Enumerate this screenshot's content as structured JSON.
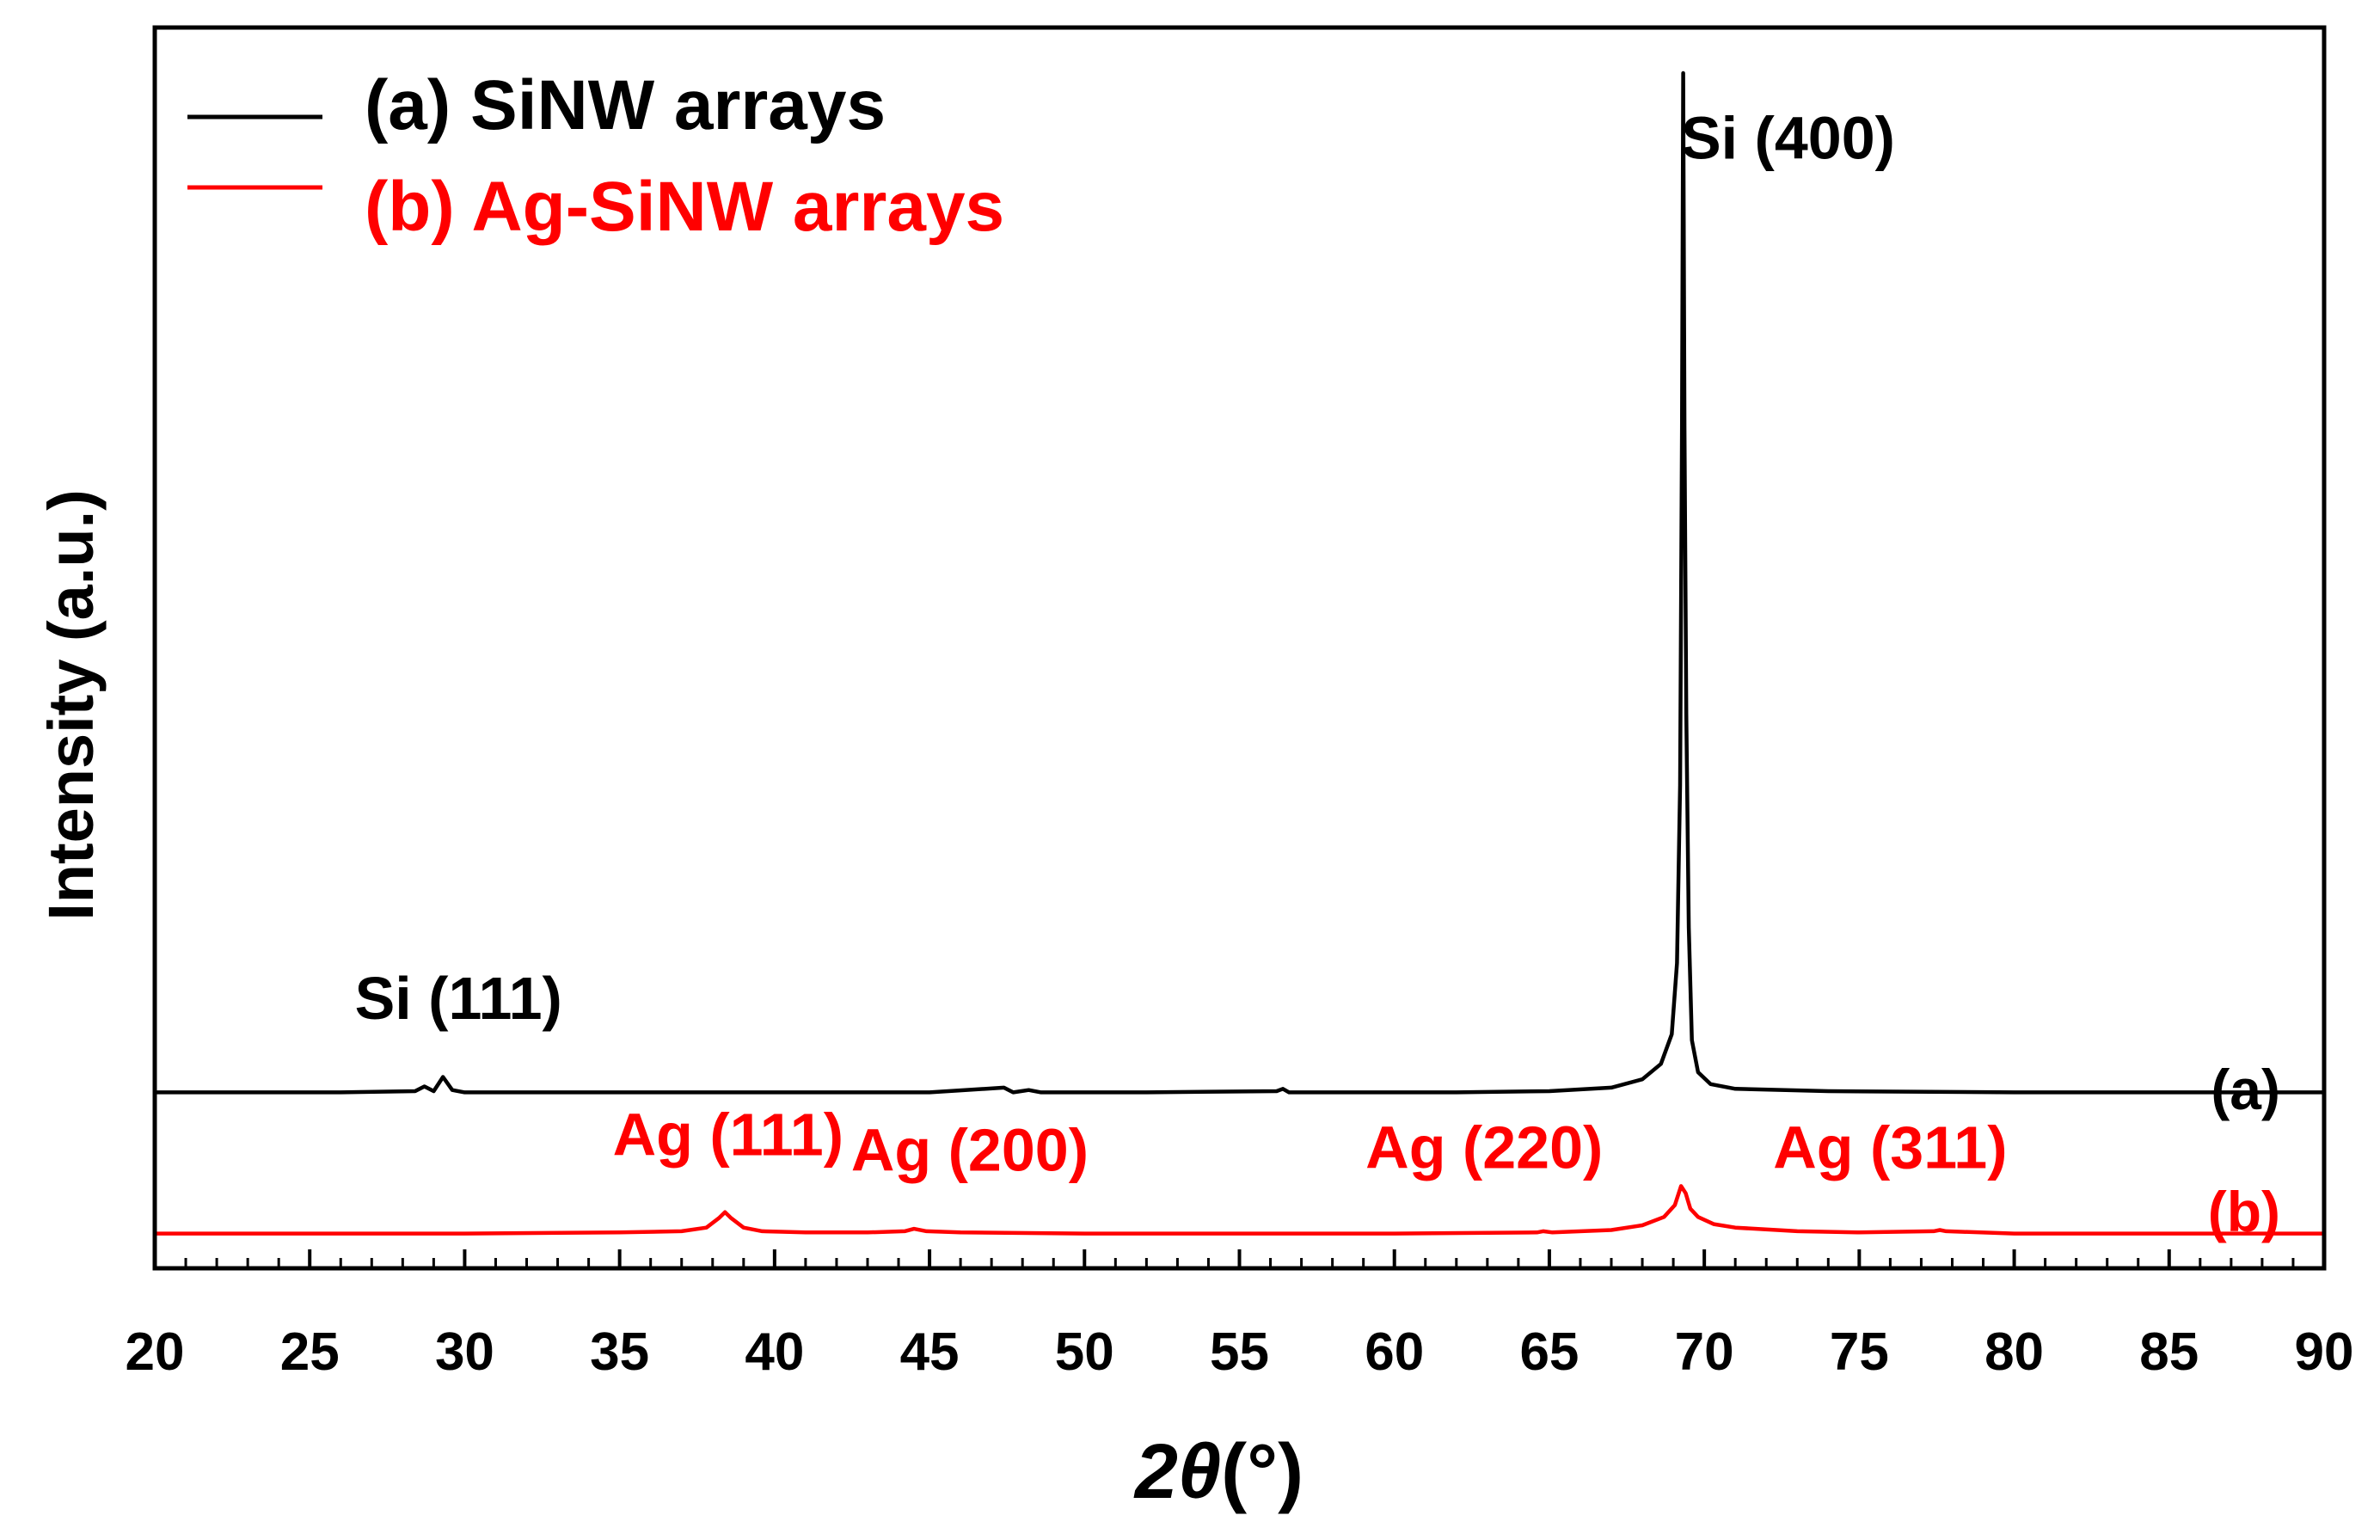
{
  "chart_data": {
    "type": "line",
    "xlabel_main": "2θ",
    "xlabel_unit": "(°)",
    "ylabel": "Intensity (a.u.)",
    "xlim": [
      20,
      90
    ],
    "ylim": [
      0,
      1000
    ],
    "x_major_ticks": [
      20,
      25,
      30,
      35,
      40,
      45,
      50,
      55,
      60,
      65,
      70,
      75,
      80,
      85,
      90
    ],
    "x_tick_labels": [
      "20",
      "25",
      "30",
      "35",
      "40",
      "45",
      "50",
      "55",
      "60",
      "65",
      "70",
      "75",
      "80",
      "85",
      "90"
    ],
    "grid": false,
    "legend_placement": "top-left",
    "series": [
      {
        "name": "(a) SiNW arrays",
        "tag": "(a)",
        "color": "#000000",
        "baseline": 141,
        "points": [
          [
            20,
            141
          ],
          [
            23,
            141
          ],
          [
            26,
            141
          ],
          [
            28.4,
            142
          ],
          [
            28.7,
            146
          ],
          [
            29.0,
            142
          ],
          [
            29.3,
            154
          ],
          [
            29.6,
            143
          ],
          [
            30,
            141
          ],
          [
            35,
            141
          ],
          [
            40,
            141
          ],
          [
            45,
            141
          ],
          [
            47.4,
            145
          ],
          [
            47.7,
            141
          ],
          [
            48.2,
            143
          ],
          [
            48.6,
            141
          ],
          [
            52,
            141
          ],
          [
            56.2,
            142
          ],
          [
            56.4,
            144
          ],
          [
            56.6,
            141
          ],
          [
            62,
            141
          ],
          [
            65,
            142
          ],
          [
            67,
            145
          ],
          [
            68.0,
            152
          ],
          [
            68.6,
            165
          ],
          [
            68.95,
            190
          ],
          [
            69.12,
            250
          ],
          [
            69.22,
            400
          ],
          [
            69.28,
            700
          ],
          [
            69.32,
            1000
          ],
          [
            69.36,
            700
          ],
          [
            69.42,
            460
          ],
          [
            69.5,
            280
          ],
          [
            69.6,
            185
          ],
          [
            69.8,
            158
          ],
          [
            70.2,
            148
          ],
          [
            71,
            144
          ],
          [
            74,
            142
          ],
          [
            80,
            141
          ],
          [
            90,
            141
          ]
        ]
      },
      {
        "name": "(b) Ag-SiNW arrays",
        "tag": "(b)",
        "color": "#ff0000",
        "baseline": 22,
        "points": [
          [
            20,
            22
          ],
          [
            25,
            22
          ],
          [
            30,
            22
          ],
          [
            35,
            23
          ],
          [
            37,
            24
          ],
          [
            37.8,
            27
          ],
          [
            38.2,
            35
          ],
          [
            38.4,
            40
          ],
          [
            38.6,
            35
          ],
          [
            39.0,
            27
          ],
          [
            39.6,
            24
          ],
          [
            41,
            23
          ],
          [
            43,
            23
          ],
          [
            44.2,
            24
          ],
          [
            44.5,
            26
          ],
          [
            44.9,
            24
          ],
          [
            46,
            23
          ],
          [
            50,
            22
          ],
          [
            55,
            22
          ],
          [
            60,
            22
          ],
          [
            64.6,
            23
          ],
          [
            64.8,
            24
          ],
          [
            65.1,
            23
          ],
          [
            67,
            25
          ],
          [
            68.0,
            29
          ],
          [
            68.7,
            36
          ],
          [
            69.05,
            46
          ],
          [
            69.25,
            62
          ],
          [
            69.4,
            56
          ],
          [
            69.55,
            43
          ],
          [
            69.8,
            36
          ],
          [
            70.3,
            30
          ],
          [
            71,
            27
          ],
          [
            73,
            24
          ],
          [
            75,
            23
          ],
          [
            77.4,
            24
          ],
          [
            77.6,
            25
          ],
          [
            77.8,
            24
          ],
          [
            80,
            22
          ],
          [
            85,
            22
          ],
          [
            90,
            22
          ]
        ]
      }
    ],
    "annotations": [
      {
        "text": "Si (111)",
        "series": "a",
        "x": 29.8,
        "y": 203
      },
      {
        "text": "Si (400)",
        "series": "a",
        "x": 72.7,
        "y": 928
      },
      {
        "text": "Ag (111)",
        "series": "b",
        "x": 38.5,
        "y": 88
      },
      {
        "text": "Ag (200)",
        "series": "b",
        "x": 46.3,
        "y": 75
      },
      {
        "text": "Ag (220)",
        "series": "b",
        "x": 62.9,
        "y": 77
      },
      {
        "text": "Ag (311)",
        "series": "b",
        "x": 76.0,
        "y": 77
      }
    ]
  }
}
